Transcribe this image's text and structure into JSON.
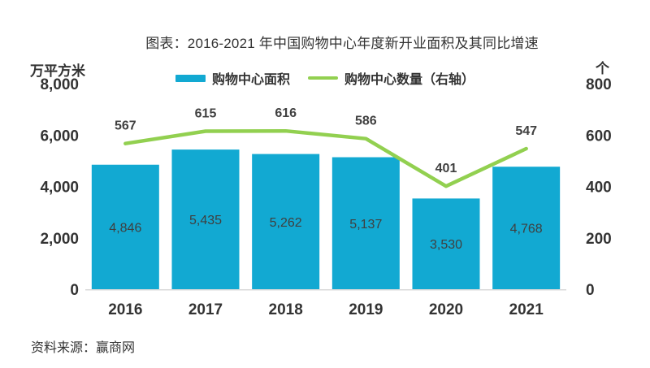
{
  "title": "图表：2016-2021 年中国购物中心年度新开业面积及其同比增速",
  "legend": {
    "area_label": "购物中心面积",
    "count_label": "购物中心数量（右轴）"
  },
  "source": "资料来源：赢商网",
  "colors": {
    "bar": "#12a9d2",
    "line": "#92d050",
    "text": "#333333",
    "value_text": "#3f3f3f",
    "axis_line": "#d9d9d9"
  },
  "chart_data": {
    "type": "bar+line",
    "title": "图表：2016-2021 年中国购物中心年度新开业面积及其同比增速",
    "categories": [
      "2016",
      "2017",
      "2018",
      "2019",
      "2020",
      "2021"
    ],
    "series": [
      {
        "name": "购物中心面积",
        "type": "bar",
        "axis": "left",
        "values": [
          4846,
          5435,
          5262,
          5137,
          3530,
          4768
        ],
        "labels": [
          "4,846",
          "5,435",
          "5,262",
          "5,137",
          "3,530",
          "4,768"
        ]
      },
      {
        "name": "购物中心数量（右轴）",
        "type": "line",
        "axis": "right",
        "values": [
          567,
          615,
          616,
          586,
          401,
          547
        ],
        "labels": [
          "567",
          "615",
          "616",
          "586",
          "401",
          "547"
        ]
      }
    ],
    "axes": {
      "left": {
        "title": "万平方米",
        "ticks": [
          "8,000",
          "6,000",
          "4,000",
          "2,000",
          "0"
        ],
        "min": 0,
        "max": 8000
      },
      "right": {
        "title": "个",
        "ticks": [
          "800",
          "600",
          "400",
          "200",
          "0"
        ],
        "min": 0,
        "max": 800
      }
    },
    "grid": false,
    "legend_position": "top"
  }
}
